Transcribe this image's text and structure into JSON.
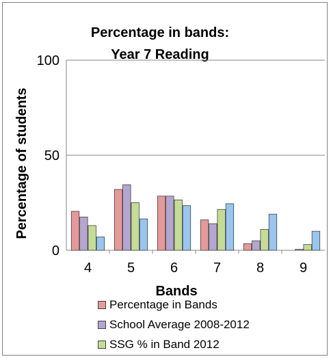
{
  "chart_data": {
    "type": "bar",
    "title": [
      "Percentage in bands:",
      "Year 7 Reading"
    ],
    "xlabel": "Bands",
    "ylabel": "Percentage of students",
    "categories": [
      "4",
      "5",
      "6",
      "7",
      "8",
      "9"
    ],
    "yticks": [
      "0",
      "50",
      "100"
    ],
    "ylim": [
      0,
      100
    ],
    "grid": true,
    "legend_position": "bottom",
    "series": [
      {
        "name": "Percentage in Bands",
        "color": "#e6999a",
        "values": [
          20.5,
          32,
          28.5,
          16,
          3.5,
          0
        ]
      },
      {
        "name": "School Average 2008-2012",
        "color": "#b4a6cf",
        "values": [
          17.5,
          34.5,
          28.5,
          14,
          5,
          0.5
        ]
      },
      {
        "name": "SSG % in Band 2012",
        "color": "#c5dc97",
        "values": [
          13,
          25,
          26.5,
          21.5,
          11,
          3
        ]
      },
      {
        "name": "",
        "color": "#99c5ee",
        "values": [
          7,
          16.5,
          23.5,
          24.5,
          19,
          10
        ]
      }
    ]
  }
}
